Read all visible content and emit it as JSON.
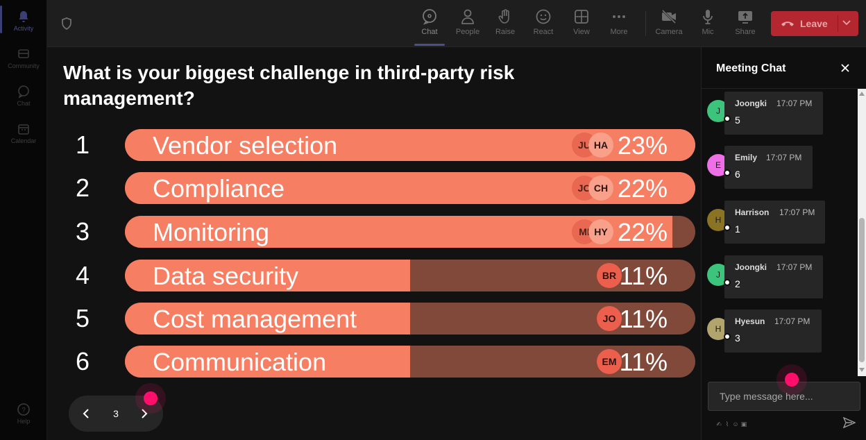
{
  "rail": {
    "items": [
      {
        "label": "Activity",
        "icon": "bell-icon",
        "active": true
      },
      {
        "label": "Community",
        "icon": "community-icon",
        "active": false
      },
      {
        "label": "Chat",
        "icon": "chat-icon",
        "active": false
      },
      {
        "label": "Calendar",
        "icon": "calendar-icon",
        "active": false
      }
    ],
    "help_label": "Help"
  },
  "toolbar": {
    "chat_label": "Chat",
    "people_label": "People",
    "raise_label": "Raise",
    "react_label": "React",
    "view_label": "View",
    "more_label": "More",
    "camera_label": "Camera",
    "mic_label": "Mic",
    "share_label": "Share",
    "leave_label": "Leave"
  },
  "poll": {
    "question": "What is your biggest challenge in third-party risk management?",
    "options": [
      {
        "number": "1",
        "label": "Vendor selection",
        "percent": "23%",
        "fill": 1.0,
        "avatars": [
          "JU",
          "HA"
        ]
      },
      {
        "number": "2",
        "label": "Compliance",
        "percent": "22%",
        "fill": 1.0,
        "avatars": [
          "JO",
          "CH"
        ]
      },
      {
        "number": "3",
        "label": "Monitoring",
        "percent": "22%",
        "fill": 0.96,
        "avatars": [
          "MI",
          "HY"
        ]
      },
      {
        "number": "4",
        "label": "Data security",
        "percent": "11%",
        "fill": 0.5,
        "avatars": [
          "BR"
        ]
      },
      {
        "number": "5",
        "label": "Cost management",
        "percent": "11%",
        "fill": 0.5,
        "avatars": [
          "JO"
        ]
      },
      {
        "number": "6",
        "label": "Communication",
        "percent": "11%",
        "fill": 0.5,
        "avatars": [
          "EM"
        ]
      }
    ],
    "page": "3",
    "colors": {
      "fill": "#f67e62",
      "track": "#81493a"
    }
  },
  "chat": {
    "title": "Meeting Chat",
    "messages": [
      {
        "initial": "J",
        "sender": "Joongki",
        "time": "17:07 PM",
        "text": "5",
        "color": "#3cc47c"
      },
      {
        "initial": "E",
        "sender": "Emily",
        "time": "17:07 PM",
        "text": "6",
        "color": "#ef70e6"
      },
      {
        "initial": "H",
        "sender": "Harrison",
        "time": "17:07 PM",
        "text": "1",
        "color": "#8a7323"
      },
      {
        "initial": "J",
        "sender": "Joongki",
        "time": "17:07 PM",
        "text": "2",
        "color": "#3cc47c"
      },
      {
        "initial": "H",
        "sender": "Hyesun",
        "time": "17:07 PM",
        "text": "3",
        "color": "#b1a46d"
      }
    ],
    "input_placeholder": "Type message here..."
  }
}
